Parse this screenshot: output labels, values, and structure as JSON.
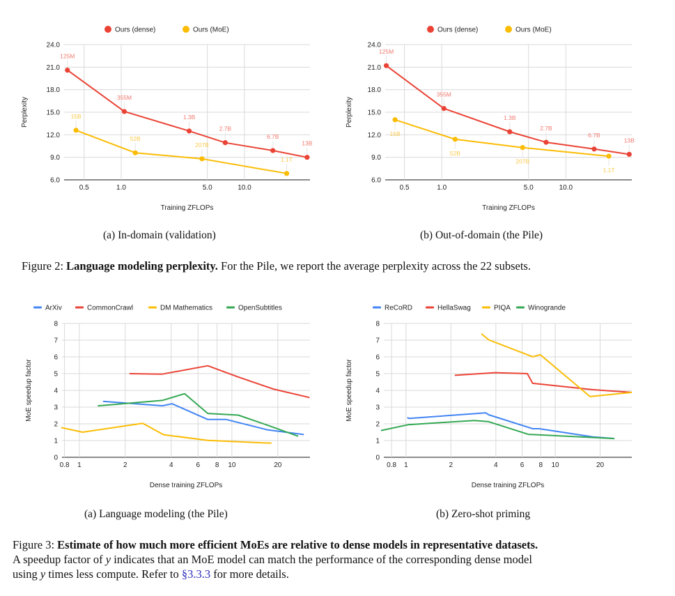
{
  "figure2": {
    "subcaptions": [
      "(a) In-domain (validation)",
      "(b) Out-of-domain (the Pile)"
    ],
    "caption_prefix": "Figure 2: ",
    "caption_bold": "Language modeling perplexity.",
    "caption_rest": " For the Pile, we report the average perplexity across the 22 subsets."
  },
  "figure3": {
    "subcaptions": [
      "(a) Language modeling (the Pile)",
      "(b) Zero-shot priming"
    ],
    "caption_prefix": "Figure 3: ",
    "caption_bold": "Estimate of how much more efficient MoEs are relative to dense models in representative datasets.",
    "caption_line2_a": "A speedup factor of ",
    "caption_var": "y",
    "caption_line2_b": " indicates that an MoE model can match the performance of the corresponding dense model",
    "caption_line3_a": "using ",
    "caption_line3_b": " times less compute. Refer to ",
    "caption_ref": "§3.3.3",
    "caption_line3_c": " for more details."
  },
  "colors": {
    "red": "#ea4335",
    "yellow": "#fbbc04",
    "blue": "#4285f4",
    "green": "#34a853",
    "red_label": "#f07a70",
    "yellow_label": "#f9c94a",
    "grid": "#d9d9d9"
  },
  "chart_data": [
    {
      "id": "fig2a",
      "type": "line",
      "title": "",
      "xlabel": "Training ZFLOPs",
      "ylabel": "Perplexity",
      "xscale": "log",
      "xlim": [
        0.344,
        34.0
      ],
      "ylim": [
        6.0,
        24.0
      ],
      "xticks": [
        0.5,
        1.0,
        5.0,
        10.0
      ],
      "xtick_labels": [
        "0.5",
        "1.0",
        "5.0",
        "10.0"
      ],
      "yticks": [
        6,
        9,
        12,
        15,
        18,
        21,
        24
      ],
      "ytick_labels": [
        "6.0",
        "9.0",
        "12.0",
        "15.0",
        "18.0",
        "21.0",
        "24.0"
      ],
      "grid": true,
      "markers": true,
      "legend_position": "top",
      "series": [
        {
          "name": "Ours (dense)",
          "color": "red",
          "x": [
            0.366,
            1.06,
            3.56,
            6.98,
            17.0,
            32.2
          ],
          "y": [
            20.6,
            15.1,
            12.5,
            10.95,
            9.9,
            9.0
          ],
          "labels": [
            "125M",
            "355M",
            "1.3B",
            "2.7B",
            "6.7B",
            "13B"
          ],
          "label_side": [
            "above",
            "above",
            "above",
            "above",
            "above",
            "above"
          ]
        },
        {
          "name": "Ours (MoE)",
          "color": "yellow",
          "x": [
            0.43,
            1.3,
            4.52,
            22.0
          ],
          "y": [
            12.6,
            9.6,
            8.8,
            6.85
          ],
          "labels": [
            "15B",
            "52B",
            "207B",
            "1.1T"
          ],
          "label_side": [
            "above",
            "above",
            "above",
            "above"
          ]
        }
      ]
    },
    {
      "id": "fig2b",
      "type": "line",
      "title": "",
      "xlabel": "Training ZFLOPs",
      "ylabel": "Perplexity",
      "xscale": "log",
      "xlim": [
        0.35,
        34.0
      ],
      "ylim": [
        6.0,
        24.0
      ],
      "xticks": [
        0.5,
        1.0,
        5.0,
        10.0
      ],
      "xtick_labels": [
        "0.5",
        "1.0",
        "5.0",
        "10.0"
      ],
      "yticks": [
        6,
        9,
        12,
        15,
        18,
        21,
        24
      ],
      "ytick_labels": [
        "6.0",
        "9.0",
        "12.0",
        "15.0",
        "18.0",
        "21.0",
        "24.0"
      ],
      "grid": true,
      "markers": true,
      "legend_position": "top",
      "series": [
        {
          "name": "Ours (dense)",
          "color": "red",
          "x": [
            0.357,
            1.04,
            3.53,
            6.93,
            16.9,
            32.4
          ],
          "y": [
            21.2,
            15.5,
            12.4,
            11.0,
            10.1,
            9.4
          ],
          "labels": [
            "125M",
            "355M",
            "1.3B",
            "2.7B",
            "6.7B",
            "13B"
          ],
          "label_side": [
            "above",
            "above",
            "above",
            "above",
            "above",
            "above"
          ]
        },
        {
          "name": "Ours (MoE)",
          "color": "yellow",
          "x": [
            0.42,
            1.28,
            4.48,
            22.2
          ],
          "y": [
            14.0,
            11.4,
            10.3,
            9.15
          ],
          "labels": [
            "15B",
            "52B",
            "207B",
            "1.1T"
          ],
          "label_side": [
            "below",
            "below",
            "below",
            "below"
          ]
        }
      ]
    },
    {
      "id": "fig3a",
      "type": "line",
      "title": "",
      "xlabel": "Dense training ZFLOPs",
      "ylabel": "MoE speedup factor",
      "xscale": "log",
      "xlim": [
        0.77,
        32.5
      ],
      "ylim": [
        0,
        8
      ],
      "xticks": [
        0.8,
        1,
        2,
        4,
        6,
        8,
        10,
        20
      ],
      "xtick_labels": [
        "0.8",
        "1",
        "2",
        "4",
        "6",
        "8",
        "10",
        "20"
      ],
      "yticks": [
        0,
        1,
        2,
        3,
        4,
        5,
        6,
        7,
        8
      ],
      "ytick_labels": [
        "0",
        "1",
        "2",
        "3",
        "4",
        "5",
        "6",
        "7",
        "8"
      ],
      "grid": true,
      "markers": false,
      "legend_position": "top",
      "series": [
        {
          "name": "ArXiv",
          "color": "blue",
          "x": [
            1.43,
            3.5,
            4.06,
            6.95,
            9.2,
            17.1,
            29.6
          ],
          "y": [
            3.34,
            3.08,
            3.2,
            2.26,
            2.26,
            1.64,
            1.36
          ]
        },
        {
          "name": "CommonCrawl",
          "color": "red",
          "x": [
            2.13,
            3.5,
            6.95,
            11.0,
            18.7,
            32.3
          ],
          "y": [
            5.0,
            4.97,
            5.47,
            4.8,
            4.08,
            3.57
          ]
        },
        {
          "name": "DM Mathematics",
          "color": "yellow",
          "x": [
            0.76,
            1.05,
            2.6,
            3.57,
            6.95,
            18.2
          ],
          "y": [
            1.78,
            1.5,
            2.03,
            1.35,
            1.01,
            0.84
          ]
        },
        {
          "name": "OpenSubtitles",
          "color": "green",
          "x": [
            1.32,
            3.5,
            4.9,
            6.95,
            11.0,
            17.1,
            27.2
          ],
          "y": [
            3.07,
            3.4,
            3.8,
            2.62,
            2.52,
            1.92,
            1.26
          ]
        }
      ]
    },
    {
      "id": "fig3b",
      "type": "line",
      "title": "",
      "xlabel": "Dense training ZFLOPs",
      "ylabel": "MoE speedup factor",
      "xscale": "log",
      "xlim": [
        0.71,
        32.6
      ],
      "ylim": [
        0,
        8
      ],
      "xticks": [
        0.8,
        1,
        2,
        4,
        6,
        8,
        10,
        20
      ],
      "xtick_labels": [
        "0.8",
        "1",
        "2",
        "4",
        "6",
        "8",
        "10",
        "20"
      ],
      "yticks": [
        0,
        1,
        2,
        3,
        4,
        5,
        6,
        7,
        8
      ],
      "ytick_labels": [
        "0",
        "1",
        "2",
        "3",
        "4",
        "5",
        "6",
        "7",
        "8"
      ],
      "grid": true,
      "markers": false,
      "legend_position": "top",
      "series": [
        {
          "name": "ReCoRD",
          "color": "blue",
          "x": [
            1.02,
            1.05,
            3.42,
            3.58,
            7.06,
            7.8,
            17.9,
            24.9
          ],
          "y": [
            2.37,
            2.32,
            2.66,
            2.54,
            1.71,
            1.71,
            1.22,
            1.12
          ]
        },
        {
          "name": "HellaSwag",
          "color": "red",
          "x": [
            2.12,
            3.96,
            6.5,
            7.06,
            17.9,
            32.6
          ],
          "y": [
            4.9,
            5.06,
            5.0,
            4.42,
            4.04,
            3.88
          ]
        },
        {
          "name": "PIQA",
          "color": "yellow",
          "x": [
            3.2,
            3.58,
            7.06,
            7.94,
            17.1,
            32.6
          ],
          "y": [
            7.38,
            7.02,
            6.01,
            6.13,
            3.63,
            3.88
          ]
        },
        {
          "name": "Winogrande",
          "color": "green",
          "x": [
            0.68,
            1.04,
            2.86,
            3.58,
            6.6,
            24.9
          ],
          "y": [
            1.6,
            1.95,
            2.2,
            2.13,
            1.37,
            1.12
          ]
        }
      ]
    }
  ]
}
